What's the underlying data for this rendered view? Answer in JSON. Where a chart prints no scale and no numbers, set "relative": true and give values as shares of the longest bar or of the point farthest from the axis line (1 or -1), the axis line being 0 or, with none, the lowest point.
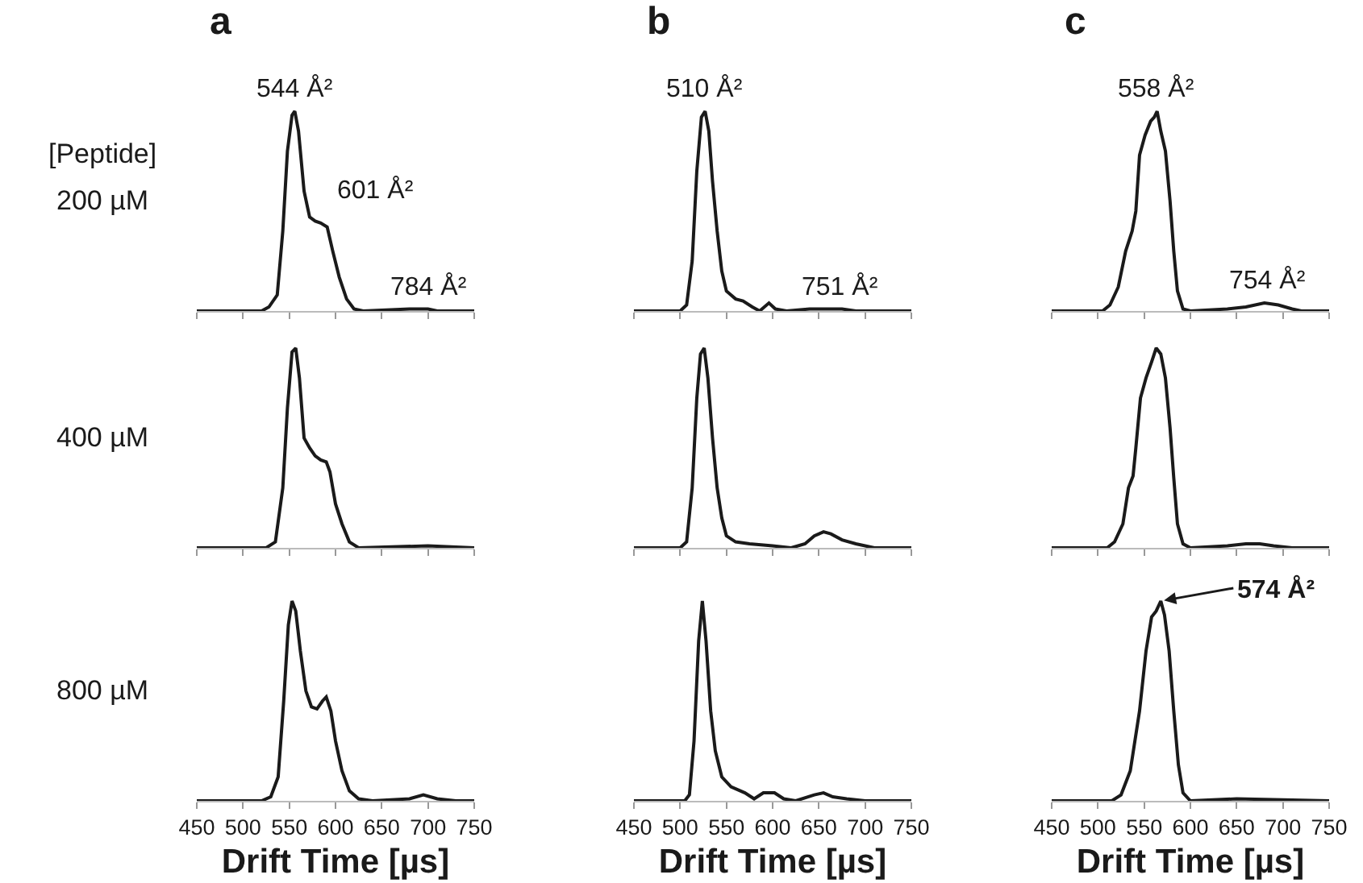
{
  "chart_data": [
    {
      "type": "line",
      "title": "a",
      "ylabel": "200 µM",
      "annotations": [
        "[Peptide]",
        {
          "text": "544 Å²",
          "x": 556,
          "y": 1
        },
        {
          "text": "601 Å²",
          "x": 591,
          "y": 0.42
        },
        {
          "text": "784 Å²",
          "x": 702,
          "y": 0.01
        }
      ],
      "relative": true,
      "color": "#1a1a1a",
      "xlim": [
        450,
        750
      ],
      "xticks": [
        450,
        500,
        550,
        600,
        650,
        700,
        750
      ],
      "tick_labels": false,
      "x": [
        450,
        520,
        528,
        537,
        543,
        548,
        553,
        556,
        560,
        566,
        572,
        578,
        584,
        591,
        597,
        604,
        612,
        620,
        630,
        680,
        700,
        710,
        750
      ],
      "values": [
        0,
        0,
        0.02,
        0.08,
        0.4,
        0.8,
        0.98,
        1,
        0.9,
        0.6,
        0.47,
        0.45,
        0.44,
        0.42,
        0.3,
        0.17,
        0.06,
        0.01,
        0,
        0.01,
        0.01,
        0,
        0
      ]
    },
    {
      "type": "line",
      "title": "b",
      "annotations": [
        {
          "text": "510 Å²",
          "x": 527,
          "y": 1
        },
        {
          "text": "751 Å²",
          "x": 674,
          "y": 0.01
        }
      ],
      "relative": true,
      "color": "#1a1a1a",
      "xlim": [
        450,
        750
      ],
      "xticks": [
        450,
        500,
        550,
        600,
        650,
        700,
        750
      ],
      "tick_labels": false,
      "x": [
        450,
        500,
        507,
        513,
        518,
        523,
        527,
        531,
        535,
        540,
        545,
        550,
        560,
        568,
        578,
        586,
        596,
        603,
        615,
        640,
        660,
        675,
        690,
        750
      ],
      "values": [
        0,
        0,
        0.03,
        0.25,
        0.7,
        0.97,
        1,
        0.9,
        0.65,
        0.4,
        0.2,
        0.1,
        0.06,
        0.05,
        0.02,
        0,
        0.04,
        0.01,
        0,
        0.01,
        0.01,
        0.01,
        0,
        0
      ]
    },
    {
      "type": "line",
      "title": "c",
      "annotations": [
        {
          "text": "558 Å²",
          "x": 564,
          "y": 1
        },
        {
          "text": "754 Å²",
          "x": 683,
          "y": 0.04
        }
      ],
      "relative": true,
      "color": "#1a1a1a",
      "xlim": [
        450,
        750
      ],
      "xticks": [
        450,
        500,
        550,
        600,
        650,
        700,
        750
      ],
      "tick_labels": false,
      "x": [
        450,
        505,
        513,
        522,
        530,
        537,
        541,
        545,
        551,
        557,
        561,
        564,
        568,
        573,
        578,
        582,
        586,
        592,
        600,
        640,
        660,
        680,
        695,
        710,
        720,
        750
      ],
      "values": [
        0,
        0,
        0.03,
        0.12,
        0.3,
        0.4,
        0.5,
        0.78,
        0.88,
        0.95,
        0.97,
        1,
        0.9,
        0.8,
        0.55,
        0.3,
        0.1,
        0.01,
        0,
        0.01,
        0.02,
        0.04,
        0.03,
        0.01,
        0,
        0
      ]
    },
    {
      "type": "line",
      "ylabel": "400 µM",
      "relative": true,
      "color": "#1a1a1a",
      "xlim": [
        450,
        750
      ],
      "xticks": [
        450,
        500,
        550,
        600,
        650,
        700,
        750
      ],
      "tick_labels": false,
      "x": [
        450,
        525,
        535,
        543,
        548,
        553,
        557,
        561,
        566,
        572,
        578,
        584,
        590,
        594,
        600,
        607,
        615,
        625,
        700,
        750
      ],
      "values": [
        0,
        0,
        0.03,
        0.3,
        0.7,
        0.98,
        1,
        0.85,
        0.55,
        0.5,
        0.46,
        0.44,
        0.43,
        0.38,
        0.22,
        0.12,
        0.03,
        0,
        0.01,
        0
      ]
    },
    {
      "type": "line",
      "relative": true,
      "color": "#1a1a1a",
      "xlim": [
        450,
        750
      ],
      "xticks": [
        450,
        500,
        550,
        600,
        650,
        700,
        750
      ],
      "tick_labels": false,
      "x": [
        450,
        500,
        507,
        513,
        518,
        522,
        526,
        530,
        535,
        540,
        545,
        550,
        560,
        575,
        600,
        620,
        635,
        645,
        655,
        663,
        675,
        690,
        710,
        750
      ],
      "values": [
        0,
        0,
        0.03,
        0.3,
        0.75,
        0.97,
        1,
        0.85,
        0.55,
        0.3,
        0.15,
        0.06,
        0.03,
        0.02,
        0.01,
        0,
        0.02,
        0.06,
        0.08,
        0.07,
        0.04,
        0.02,
        0,
        0
      ]
    },
    {
      "type": "line",
      "relative": true,
      "color": "#1a1a1a",
      "xlim": [
        450,
        750
      ],
      "xticks": [
        450,
        500,
        550,
        600,
        650,
        700,
        750
      ],
      "tick_labels": false,
      "x": [
        450,
        510,
        518,
        527,
        533,
        538,
        541,
        546,
        552,
        558,
        563,
        568,
        573,
        578,
        582,
        586,
        592,
        600,
        640,
        660,
        675,
        690,
        710,
        750
      ],
      "values": [
        0,
        0,
        0.03,
        0.12,
        0.3,
        0.36,
        0.5,
        0.75,
        0.85,
        0.93,
        1,
        0.97,
        0.85,
        0.6,
        0.35,
        0.12,
        0.02,
        0,
        0.01,
        0.02,
        0.02,
        0.01,
        0,
        0
      ]
    },
    {
      "type": "line",
      "ylabel": "800 µM",
      "xlabel": "Drift Time [µs]",
      "relative": true,
      "color": "#1a1a1a",
      "xlim": [
        450,
        750
      ],
      "xticks": [
        450,
        500,
        550,
        600,
        650,
        700,
        750
      ],
      "tick_labels": "x",
      "x": [
        450,
        520,
        530,
        538,
        544,
        549,
        553,
        557,
        562,
        568,
        574,
        580,
        586,
        590,
        595,
        600,
        607,
        615,
        625,
        640,
        680,
        695,
        710,
        730,
        750
      ],
      "values": [
        0,
        0,
        0.02,
        0.12,
        0.5,
        0.88,
        1,
        0.95,
        0.75,
        0.55,
        0.47,
        0.46,
        0.5,
        0.52,
        0.45,
        0.3,
        0.15,
        0.05,
        0.01,
        0,
        0.01,
        0.03,
        0.01,
        0,
        0
      ]
    },
    {
      "type": "line",
      "xlabel": "Drift Time [µs]",
      "relative": true,
      "color": "#1a1a1a",
      "xlim": [
        450,
        750
      ],
      "xticks": [
        450,
        500,
        550,
        600,
        650,
        700,
        750
      ],
      "tick_labels": "x",
      "x": [
        450,
        505,
        510,
        515,
        520,
        524,
        528,
        533,
        538,
        545,
        555,
        570,
        580,
        590,
        602,
        612,
        625,
        645,
        655,
        665,
        680,
        700,
        750
      ],
      "values": [
        0,
        0,
        0.03,
        0.3,
        0.8,
        1,
        0.8,
        0.45,
        0.25,
        0.12,
        0.07,
        0.04,
        0.01,
        0.04,
        0.04,
        0.01,
        0,
        0.03,
        0.04,
        0.02,
        0.01,
        0,
        0
      ]
    },
    {
      "type": "line",
      "xlabel": "Drift Time [µs]",
      "annotations": [
        {
          "text": "574 Å²",
          "x": 568,
          "y": 1
        }
      ],
      "relative": true,
      "color": "#1a1a1a",
      "xlim": [
        450,
        750
      ],
      "xticks": [
        450,
        500,
        550,
        600,
        650,
        700,
        750
      ],
      "tick_labels": "x",
      "x": [
        450,
        515,
        525,
        535,
        545,
        552,
        558,
        563,
        568,
        572,
        577,
        582,
        587,
        592,
        600,
        650,
        750
      ],
      "values": [
        0,
        0,
        0.03,
        0.15,
        0.45,
        0.75,
        0.92,
        0.95,
        1,
        0.93,
        0.75,
        0.45,
        0.18,
        0.04,
        0,
        0.01,
        0
      ]
    }
  ]
}
